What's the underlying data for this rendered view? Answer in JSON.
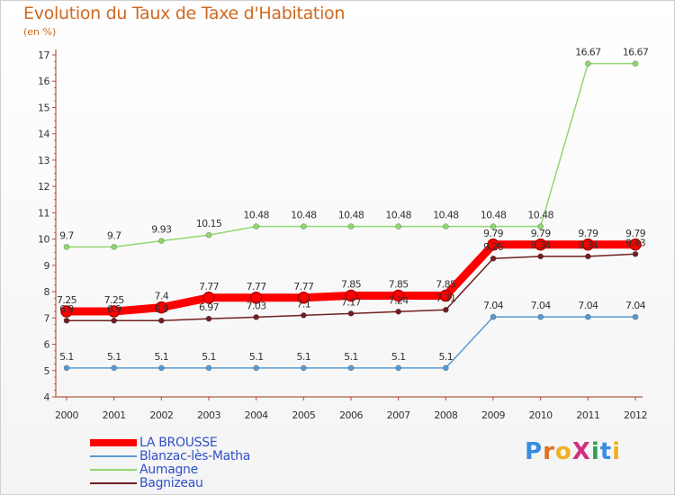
{
  "title": "Evolution du Taux de Taxe d'Habitation",
  "subtitle": "(en %)",
  "logo": {
    "text": "ProXiti",
    "colors": [
      "#3a8de0",
      "#e07020",
      "#f0b020",
      "#d03080",
      "#30a050",
      "#3a8de0",
      "#f0b020"
    ]
  },
  "chart_data": {
    "type": "line",
    "x": [
      "2000",
      "2001",
      "2002",
      "2003",
      "2004",
      "2005",
      "2006",
      "2007",
      "2008",
      "2009",
      "2010",
      "2011",
      "2012"
    ],
    "ylim": [
      4,
      17
    ],
    "yticks": [
      4,
      5,
      6,
      7,
      8,
      9,
      10,
      11,
      12,
      13,
      14,
      15,
      16,
      17
    ],
    "grid": false,
    "legend_position": "bottom-left",
    "series": [
      {
        "name": "LA BROUSSE",
        "color": "#ff0000",
        "emphasis": true,
        "values": [
          7.25,
          7.25,
          7.4,
          7.77,
          7.77,
          7.77,
          7.85,
          7.85,
          7.85,
          9.79,
          9.79,
          9.79,
          9.79
        ],
        "labels": [
          "7.25",
          "7.25",
          "7.4",
          "7.77",
          "7.77",
          "7.77",
          "7.85",
          "7.85",
          "7.85",
          "9.79",
          "9.79",
          "9.79",
          "9.79"
        ]
      },
      {
        "name": "Blanzac-lès-Matha",
        "color": "#5a9ad0",
        "values": [
          5.1,
          5.1,
          5.1,
          5.1,
          5.1,
          5.1,
          5.1,
          5.1,
          5.1,
          7.04,
          7.04,
          7.04,
          7.04
        ],
        "labels": [
          "5.1",
          "5.1",
          "5.1",
          "5.1",
          "5.1",
          "5.1",
          "5.1",
          "5.1",
          "5.1",
          "7.04",
          "7.04",
          "7.04",
          "7.04"
        ]
      },
      {
        "name": "Aumagne",
        "color": "#90d870",
        "values": [
          9.7,
          9.7,
          9.93,
          10.15,
          10.48,
          10.48,
          10.48,
          10.48,
          10.48,
          10.48,
          10.48,
          16.67,
          16.67
        ],
        "labels": [
          "9.7",
          "9.7",
          "9.93",
          "10.15",
          "10.48",
          "10.48",
          "10.48",
          "10.48",
          "10.48",
          "10.48",
          "10.48",
          "16.67",
          "16.67"
        ]
      },
      {
        "name": "Bagnizeau",
        "color": "#702020",
        "values": [
          6.9,
          6.9,
          6.9,
          6.97,
          7.03,
          7.1,
          7.17,
          7.24,
          7.31,
          9.26,
          9.34,
          9.34,
          9.43
        ],
        "labels": [
          "6.9",
          "6.9",
          "6.9",
          "6.97",
          "7.03",
          "7.1",
          "7.17",
          "7.24",
          "7.31",
          "9.26",
          "9.34",
          "9.34",
          "9.43"
        ]
      }
    ]
  }
}
